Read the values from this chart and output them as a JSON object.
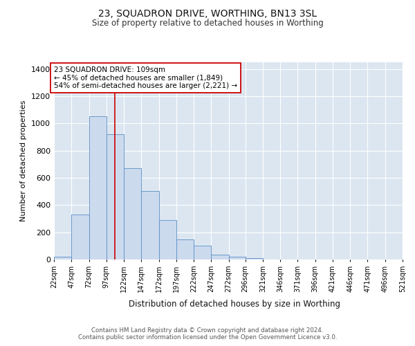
{
  "title": "23, SQUADRON DRIVE, WORTHING, BN13 3SL",
  "subtitle": "Size of property relative to detached houses in Worthing",
  "xlabel": "Distribution of detached houses by size in Worthing",
  "ylabel": "Number of detached properties",
  "bins": [
    22,
    47,
    72,
    97,
    122,
    147,
    172,
    197,
    222,
    247,
    272,
    296,
    321,
    346,
    371,
    396,
    421,
    446,
    471,
    496,
    521
  ],
  "bar_counts": [
    20,
    330,
    1055,
    920,
    670,
    505,
    290,
    150,
    100,
    35,
    20,
    12,
    0,
    0,
    0,
    0,
    0,
    0,
    0,
    0
  ],
  "property_size": 109,
  "annotation_text": "23 SQUADRON DRIVE: 109sqm\n← 45% of detached houses are smaller (1,849)\n54% of semi-detached houses are larger (2,221) →",
  "bar_color": "#ccdaee",
  "bar_edge_color": "#5b8ec4",
  "red_line_color": "#cc0000",
  "annotation_box_edge": "#cc0000",
  "annotation_box_face": "#ffffff",
  "background_color": "#dce6f1",
  "ylim": [
    0,
    1450
  ],
  "yticks": [
    0,
    200,
    400,
    600,
    800,
    1000,
    1200,
    1400
  ],
  "tick_labels": [
    "22sqm",
    "47sqm",
    "72sqm",
    "97sqm",
    "122sqm",
    "147sqm",
    "172sqm",
    "197sqm",
    "222sqm",
    "247sqm",
    "272sqm",
    "296sqm",
    "321sqm",
    "346sqm",
    "371sqm",
    "396sqm",
    "421sqm",
    "446sqm",
    "471sqm",
    "496sqm",
    "521sqm"
  ],
  "footer_text": "Contains HM Land Registry data © Crown copyright and database right 2024.\nContains public sector information licensed under the Open Government Licence v3.0."
}
